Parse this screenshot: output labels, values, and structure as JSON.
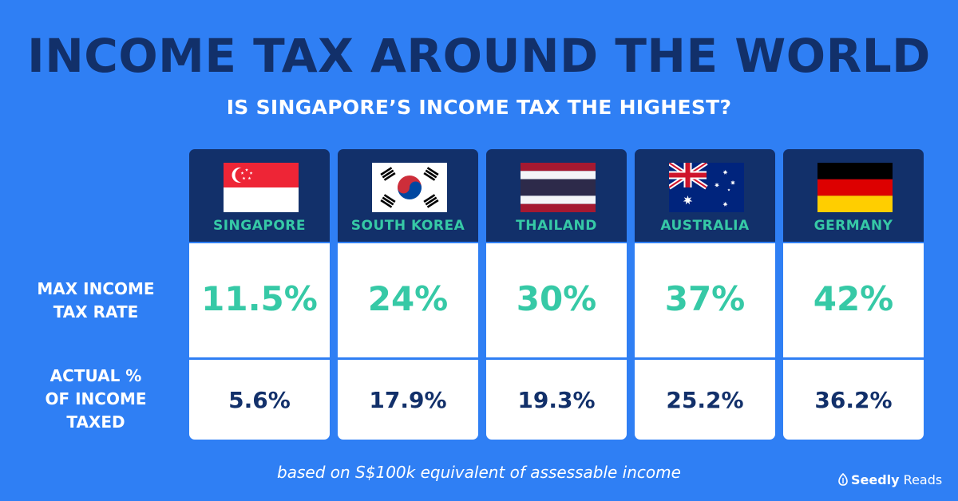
{
  "title": "INCOME TAX AROUND THE WORLD",
  "subtitle": "IS SINGAPORE’S INCOME TAX THE HIGHEST?",
  "row_labels": {
    "max": "MAX INCOME\nTAX RATE",
    "actual": "ACTUAL %\nOF INCOME\nTAXED"
  },
  "footnote": "based on S$100k equivalent of assessable income",
  "brand": {
    "name": "Seedly",
    "suffix": " Reads"
  },
  "colors": {
    "background": "#2f7ff4",
    "header": "#12306a",
    "accent_green": "#36c9a6",
    "text_dark": "#12306a"
  },
  "chart_data": {
    "type": "table",
    "title": "INCOME TAX AROUND THE WORLD",
    "subtitle": "IS SINGAPORE’S INCOME TAX THE HIGHEST?",
    "columns": [
      {
        "country": "SINGAPORE",
        "flag": "singapore-flag",
        "max_rate_label": "11.5%",
        "max_rate": 11.5,
        "actual_label": "5.6%",
        "actual": 5.6
      },
      {
        "country": "SOUTH KOREA",
        "flag": "south-korea-flag",
        "max_rate_label": "24%",
        "max_rate": 24,
        "actual_label": "17.9%",
        "actual": 17.9
      },
      {
        "country": "THAILAND",
        "flag": "thailand-flag",
        "max_rate_label": "30%",
        "max_rate": 30,
        "actual_label": "19.3%",
        "actual": 19.3
      },
      {
        "country": "AUSTRALIA",
        "flag": "australia-flag",
        "max_rate_label": "37%",
        "max_rate": 37,
        "actual_label": "25.2%",
        "actual": 25.2
      },
      {
        "country": "GERMANY",
        "flag": "germany-flag",
        "max_rate_label": "42%",
        "max_rate": 42,
        "actual_label": "36.2%",
        "actual": 36.2
      }
    ]
  }
}
